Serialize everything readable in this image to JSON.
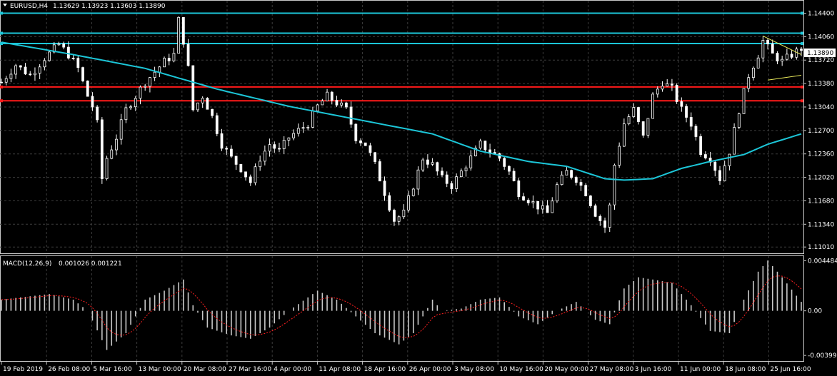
{
  "header": {
    "symbol": "EURUSD,H4",
    "ohlc": "1.13629 1.13923 1.13603 1.13890"
  },
  "macd_header": {
    "label": "MACD(12,26,9)",
    "values": "0.001026 0.001221"
  },
  "colors": {
    "background": "#000000",
    "candle": "#ffffff",
    "ma": "#1cc6d8",
    "resistance": "#1cc6d8",
    "support": "#ff1a1a",
    "wedge": "#e8e85a",
    "macd_hist": "#c8c8c8",
    "macd_signal": "#ff2020",
    "grid": "#3c3c3c"
  },
  "chart_data": [
    {
      "type": "candlestick",
      "title": "EURUSD,H4",
      "y_ticks": [
        "1.14400",
        "1.14060",
        "1.13720",
        "1.13380",
        "1.13040",
        "1.12700",
        "1.12360",
        "1.12020",
        "1.11680",
        "1.11340",
        "1.11010"
      ],
      "ylim": [
        1.1095,
        1.1455
      ],
      "current_price": "1.13890",
      "x_ticks": [
        "19 Feb 2019",
        "26 Feb 08:00",
        "5 Mar 16:00",
        "13 Mar 00:00",
        "20 Mar 08:00",
        "27 Mar 16:00",
        "4 Apr 00:00",
        "11 Apr 08:00",
        "18 Apr 16:00",
        "26 Apr 00:00",
        "3 May 08:00",
        "10 May 16:00",
        "20 May 00:00",
        "27 May 08:00",
        "3 Jun 16:00",
        "11 Jun 00:00",
        "18 Jun 08:00",
        "25 Jun 16:00"
      ],
      "horizontal_lines": {
        "resistance": [
          1.144,
          1.1411,
          1.1396
        ],
        "support": [
          1.1333,
          1.1313
        ]
      },
      "close_path": [
        [
          0,
          1.134
        ],
        [
          3,
          1.1365
        ],
        [
          6,
          1.135
        ],
        [
          9,
          1.1375
        ],
        [
          12,
          1.1395
        ],
        [
          14,
          1.138
        ],
        [
          16,
          1.136
        ],
        [
          18,
          1.132
        ],
        [
          19,
          1.1305
        ],
        [
          20,
          1.128
        ],
        [
          21,
          1.12
        ],
        [
          22,
          1.123
        ],
        [
          24,
          1.126
        ],
        [
          26,
          1.13
        ],
        [
          28,
          1.132
        ],
        [
          30,
          1.134
        ],
        [
          32,
          1.1355
        ],
        [
          34,
          1.137
        ],
        [
          36,
          1.138
        ],
        [
          37,
          1.143
        ],
        [
          38,
          1.14
        ],
        [
          39,
          1.136
        ],
        [
          40,
          1.13
        ],
        [
          42,
          1.132
        ],
        [
          44,
          1.129
        ],
        [
          46,
          1.125
        ],
        [
          48,
          1.123
        ],
        [
          50,
          1.1215
        ],
        [
          52,
          1.1195
        ],
        [
          54,
          1.123
        ],
        [
          56,
          1.125
        ],
        [
          58,
          1.124
        ],
        [
          60,
          1.126
        ],
        [
          62,
          1.127
        ],
        [
          64,
          1.128
        ],
        [
          66,
          1.1305
        ],
        [
          68,
          1.132
        ],
        [
          70,
          1.131
        ],
        [
          72,
          1.13
        ],
        [
          74,
          1.126
        ],
        [
          76,
          1.125
        ],
        [
          78,
          1.122
        ],
        [
          80,
          1.118
        ],
        [
          82,
          1.114
        ],
        [
          84,
          1.115
        ],
        [
          86,
          1.119
        ],
        [
          88,
          1.123
        ],
        [
          90,
          1.122
        ],
        [
          92,
          1.12
        ],
        [
          94,
          1.119
        ],
        [
          96,
          1.121
        ],
        [
          98,
          1.123
        ],
        [
          100,
          1.125
        ],
        [
          102,
          1.124
        ],
        [
          104,
          1.123
        ],
        [
          106,
          1.121
        ],
        [
          108,
          1.118
        ],
        [
          110,
          1.117
        ],
        [
          112,
          1.116
        ],
        [
          114,
          1.115
        ],
        [
          116,
          1.119
        ],
        [
          118,
          1.121
        ],
        [
          120,
          1.12
        ],
        [
          122,
          1.118
        ],
        [
          124,
          1.115
        ],
        [
          126,
          1.113
        ],
        [
          127,
          1.116
        ],
        [
          128,
          1.122
        ],
        [
          130,
          1.128
        ],
        [
          132,
          1.13
        ],
        [
          134,
          1.126
        ],
        [
          136,
          1.132
        ],
        [
          138,
          1.134
        ],
        [
          140,
          1.133
        ],
        [
          142,
          1.13
        ],
        [
          144,
          1.128
        ],
        [
          146,
          1.124
        ],
        [
          148,
          1.123
        ],
        [
          150,
          1.12
        ],
        [
          152,
          1.124
        ],
        [
          154,
          1.13
        ],
        [
          156,
          1.135
        ],
        [
          158,
          1.138
        ],
        [
          159,
          1.14
        ],
        [
          161,
          1.138
        ],
        [
          163,
          1.137
        ],
        [
          165,
          1.138
        ],
        [
          167,
          1.1389
        ]
      ],
      "ma_path": [
        [
          0,
          1.1398
        ],
        [
          15,
          1.138
        ],
        [
          30,
          1.136
        ],
        [
          45,
          1.133
        ],
        [
          60,
          1.1305
        ],
        [
          75,
          1.1285
        ],
        [
          90,
          1.1265
        ],
        [
          100,
          1.124
        ],
        [
          110,
          1.1225
        ],
        [
          118,
          1.1218
        ],
        [
          126,
          1.12
        ],
        [
          130,
          1.1198
        ],
        [
          136,
          1.12
        ],
        [
          142,
          1.1215
        ],
        [
          148,
          1.1225
        ],
        [
          155,
          1.1235
        ],
        [
          160,
          1.125
        ],
        [
          167,
          1.1265
        ]
      ],
      "wedge_lines": [
        [
          [
            159,
            1.1407
          ],
          [
            167,
            1.138
          ]
        ],
        [
          [
            160,
            1.1343
          ],
          [
            167,
            1.135
          ]
        ]
      ]
    },
    {
      "type": "bar",
      "title": "MACD(12,26,9)",
      "y_ticks": [
        "0.004484",
        "0.00",
        "-0.00399"
      ],
      "ylim": [
        -0.0043,
        0.0047
      ],
      "histogram_path": [
        [
          0,
          0.001
        ],
        [
          10,
          0.0015
        ],
        [
          15,
          0.001
        ],
        [
          18,
          0.0
        ],
        [
          22,
          -0.0035
        ],
        [
          26,
          -0.002
        ],
        [
          30,
          0.001
        ],
        [
          34,
          0.0018
        ],
        [
          38,
          0.0028
        ],
        [
          40,
          0.0005
        ],
        [
          43,
          -0.0015
        ],
        [
          48,
          -0.0022
        ],
        [
          52,
          -0.0025
        ],
        [
          56,
          -0.0015
        ],
        [
          60,
          0.0
        ],
        [
          66,
          0.0018
        ],
        [
          70,
          0.001
        ],
        [
          74,
          -0.0005
        ],
        [
          78,
          -0.002
        ],
        [
          83,
          -0.003
        ],
        [
          86,
          -0.002
        ],
        [
          90,
          0.001
        ],
        [
          92,
          0.0
        ],
        [
          96,
          0.0002
        ],
        [
          100,
          0.001
        ],
        [
          104,
          0.0012
        ],
        [
          108,
          -0.0005
        ],
        [
          112,
          -0.0012
        ],
        [
          116,
          0.0
        ],
        [
          120,
          0.0008
        ],
        [
          124,
          -0.0008
        ],
        [
          127,
          -0.0012
        ],
        [
          130,
          0.002
        ],
        [
          133,
          0.003
        ],
        [
          136,
          0.0028
        ],
        [
          140,
          0.0025
        ],
        [
          144,
          0.0005
        ],
        [
          148,
          -0.0018
        ],
        [
          152,
          -0.002
        ],
        [
          155,
          0.001
        ],
        [
          158,
          0.0035
        ],
        [
          160,
          0.0045
        ],
        [
          163,
          0.003
        ],
        [
          167,
          0.0008
        ]
      ]
    }
  ]
}
